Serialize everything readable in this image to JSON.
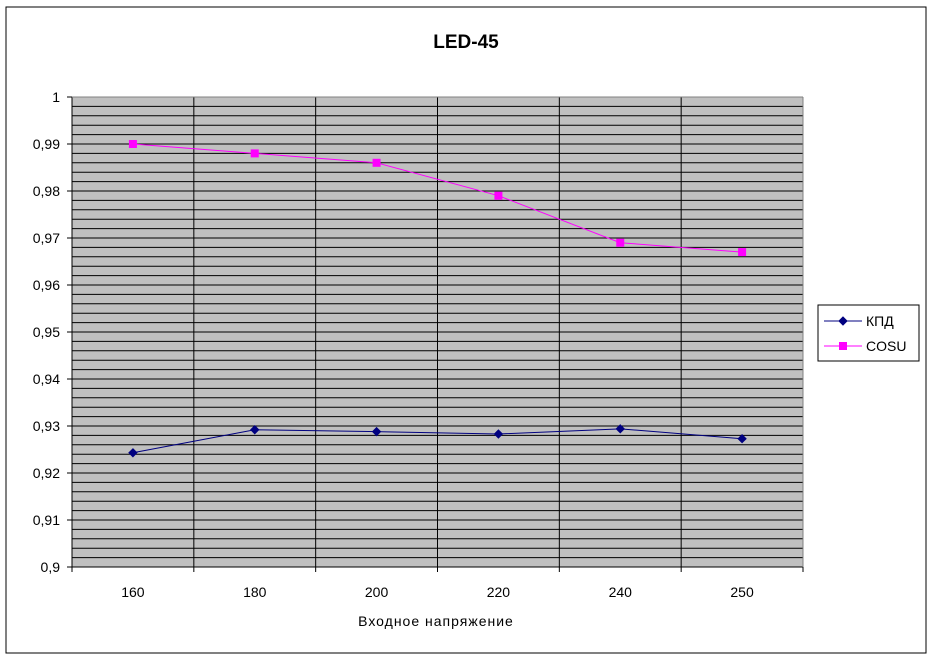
{
  "chart_data": {
    "type": "line",
    "title": "LED-45",
    "xlabel": "Входное напряжение",
    "ylabel": "",
    "categories": [
      "160",
      "180",
      "200",
      "220",
      "240",
      "250"
    ],
    "y_tick_labels": [
      "0,9",
      "0,91",
      "0,92",
      "0,93",
      "0,94",
      "0,95",
      "0,96",
      "0,97",
      "0,98",
      "0,99",
      "1"
    ],
    "ylim": [
      0.9,
      1.0
    ],
    "grid": true,
    "legend_position": "right",
    "series": [
      {
        "name": "КПД",
        "color": "#000080",
        "marker": "diamond",
        "values": [
          0.9243,
          0.9292,
          0.9288,
          0.9283,
          0.9294,
          0.9273
        ]
      },
      {
        "name": "COSU",
        "color": "#FF00FF",
        "marker": "square",
        "values": [
          0.99,
          0.988,
          0.986,
          0.979,
          0.969,
          0.967
        ]
      }
    ]
  },
  "colors": {
    "plot_background": "#C0C0C0",
    "gridline": "#000000",
    "border": "#000000"
  }
}
